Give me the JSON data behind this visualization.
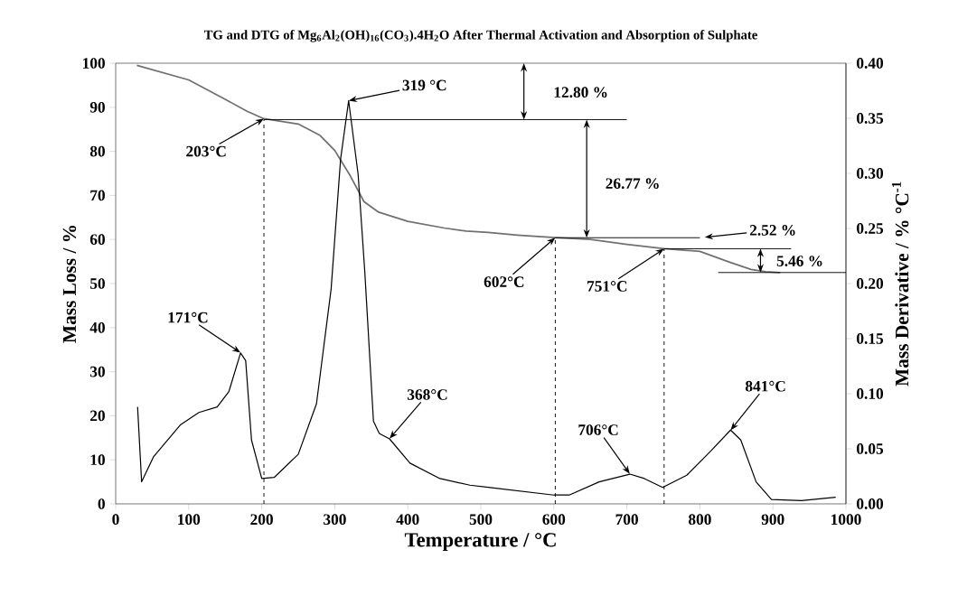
{
  "chart_data": {
    "type": "line",
    "title": "TG and DTG of Mg$_{6}$Al$_{2}$(OH)$_{16}$(CO$_{3}$).4H$_{2}$O  After Thermal Activation and Absorption of Sulphate",
    "xlabel": "Temperature / °C",
    "ylabel": "Mass Loss / %",
    "y2label": "Mass Derivative / % °C$^{-1}$",
    "xlim": [
      0,
      1000
    ],
    "xticks": [
      0,
      100,
      200,
      300,
      400,
      500,
      600,
      700,
      800,
      900,
      1000
    ],
    "ylim": [
      0,
      100
    ],
    "yticks": [
      0,
      10,
      20,
      30,
      40,
      50,
      60,
      70,
      80,
      90,
      100
    ],
    "y2lim": [
      0,
      0.4
    ],
    "y2ticks": [
      {
        "value": 0,
        "label": "0.00"
      },
      {
        "value": 0.05,
        "label": "0.05"
      },
      {
        "value": 0.1,
        "label": "0.10"
      },
      {
        "value": 0.15,
        "label": "0.15"
      },
      {
        "value": 0.2,
        "label": "0.20"
      },
      {
        "value": 0.25,
        "label": "0.25"
      },
      {
        "value": 0.3,
        "label": "0.30"
      },
      {
        "value": 0.35,
        "label": "0.35"
      },
      {
        "value": 0.4,
        "label": "0.40"
      }
    ],
    "marker": "none",
    "series": [
      {
        "color": "#707070",
        "x": [
          29,
          100,
          150,
          180,
          203,
          250,
          280,
          300,
          320,
          340,
          360,
          400,
          450,
          480,
          510,
          550,
          602,
          650,
          700,
          751,
          800,
          840,
          870,
          890,
          910
        ],
        "values": [
          99.5,
          96.2,
          91.8,
          89.1,
          87.4,
          86.2,
          83.6,
          80.2,
          74.8,
          68.6,
          66.2,
          64.1,
          62.6,
          61.9,
          61.6,
          61.0,
          60.4,
          60.0,
          58.9,
          57.9,
          57.3,
          54.9,
          53.2,
          52.7,
          52.5
        ]
      },
      {
        "color": "#000000",
        "axis": "y2",
        "x": [
          30,
          35.5,
          52,
          89,
          114,
          139,
          155,
          171,
          178,
          186,
          200,
          217,
          250,
          275,
          295,
          308,
          319,
          332,
          341,
          353,
          361,
          375,
          403,
          444,
          485,
          510,
          600,
          621,
          662,
          704,
          724,
          749,
          782,
          815,
          842,
          856,
          877,
          898,
          939,
          986
        ],
        "values": [
          0.088,
          0.02,
          0.043,
          0.072,
          0.083,
          0.088,
          0.102,
          0.137,
          0.13,
          0.058,
          0.023,
          0.024,
          0.045,
          0.091,
          0.195,
          0.313,
          0.366,
          0.299,
          0.212,
          0.075,
          0.064,
          0.059,
          0.037,
          0.023,
          0.017,
          0.015,
          0.008,
          0.008,
          0.02,
          0.027,
          0.023,
          0.015,
          0.026,
          0.048,
          0.067,
          0.058,
          0.02,
          0.004,
          0.003,
          0.006
        ]
      },
      {
        "color": "#000000",
        "line_style": "dashed",
        "x": [
          203,
          203
        ],
        "values": [
          0,
          87.2
        ]
      },
      {
        "color": "#000000",
        "line_style": "dashed",
        "x": [
          602,
          602
        ],
        "values": [
          0,
          60.4
        ]
      },
      {
        "color": "#000000",
        "line_style": "dashed",
        "x": [
          751,
          751
        ],
        "values": [
          0,
          57.9
        ]
      },
      {
        "color": "#000000",
        "x": [
          203,
          700
        ],
        "values": [
          87.2,
          87.2
        ]
      },
      {
        "color": "#000000",
        "x": [
          602,
          800
        ],
        "values": [
          60.4,
          60.4
        ]
      },
      {
        "color": "#000000",
        "x": [
          751,
          925
        ],
        "values": [
          57.9,
          57.9
        ]
      },
      {
        "color": "#000000",
        "x": [
          825,
          1000
        ],
        "values": [
          52.5,
          52.5
        ]
      }
    ],
    "annotations": [
      {
        "text": "319 °C",
        "x": 319,
        "y": 91.5
      },
      {
        "text": "203°C",
        "x": 203,
        "y": 87.4
      },
      {
        "text": "171°C",
        "x": 171,
        "y": 34.3
      },
      {
        "text": "368°C",
        "x": 375,
        "y": 14.8
      },
      {
        "text": "602°C",
        "x": 602,
        "y": 60.4
      },
      {
        "text": "751°C",
        "x": 751,
        "y": 57.9
      },
      {
        "text": "706°C",
        "x": 704,
        "y": 6.8
      },
      {
        "text": "841°C",
        "x": 842,
        "y": 16.7
      },
      "2.52 %",
      "12.80 %",
      "26.77 %",
      "5.46 %"
    ]
  }
}
